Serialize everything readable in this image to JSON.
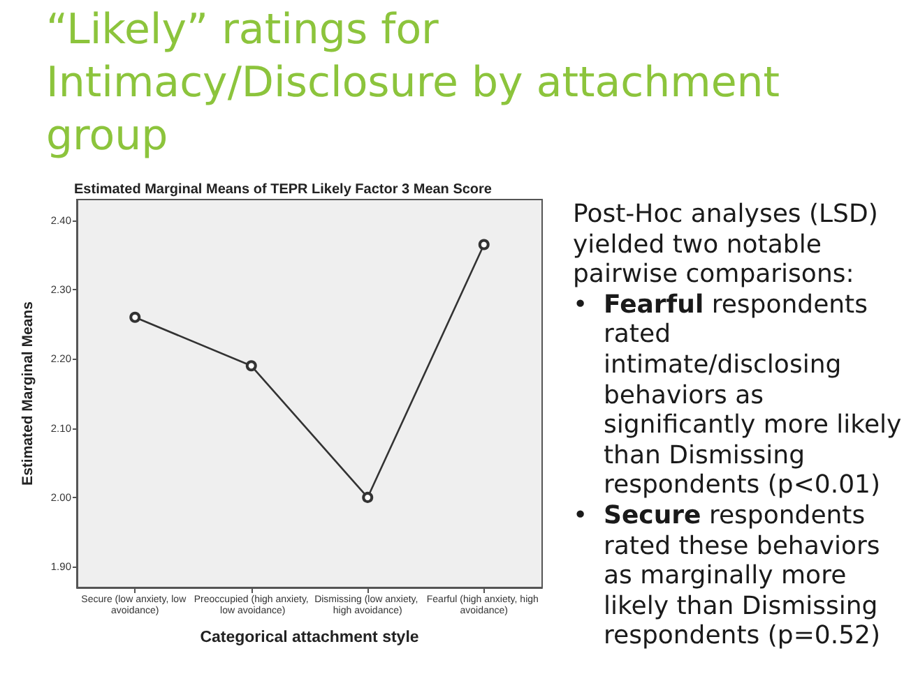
{
  "chart_data": {
    "type": "line",
    "title": "“Likely” ratings for Intimacy/Disclosure by attachment group",
    "subtitle": "Estimated Marginal Means of TEPR Likely Factor 3 Mean Score",
    "xlabel": "Categorical attachment style",
    "ylabel": "Estimated Marginal Means",
    "categories": [
      "Secure (low anxiety, low avoidance)",
      "Preoccupied (high anxiety, low avoidance)",
      "Dismissing (low anxiety, high avoidance)",
      "Fearful (high anxiety, high avoidance)"
    ],
    "series": [
      {
        "color": "#333333",
        "values": [
          2.26,
          2.19,
          2.0,
          2.365
        ]
      }
    ],
    "ylim": [
      1.87,
      2.43
    ],
    "yticks": [
      {
        "value": 1.9,
        "label": "1.90"
      },
      {
        "value": 2.0,
        "label": "2.00"
      },
      {
        "value": 2.1,
        "label": "2.10"
      },
      {
        "value": 2.2,
        "label": "2.20"
      },
      {
        "value": 2.3,
        "label": "2.30"
      },
      {
        "value": 2.4,
        "label": "2.40"
      }
    ],
    "grid": false,
    "marker": "circle",
    "line_style": "solid",
    "annotations": [
      "Post-Hoc analyses (LSD) yielded two notable pairwise comparisons:",
      "• Fearful respondents rated intimate/disclosing behaviors as significantly more likely than Dismissing respondents (p<0.01)",
      "• Secure respondents rated these behaviors as marginally more likely than Dismissing respondents (p=0.52)"
    ]
  }
}
